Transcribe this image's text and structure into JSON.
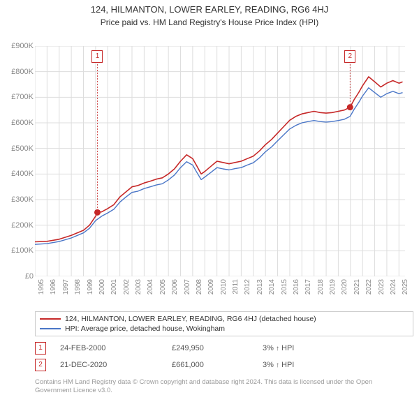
{
  "title_line1": "124, HILMANTON, LOWER EARLEY, READING, RG6 4HJ",
  "title_line2": "Price paid vs. HM Land Registry's House Price Index (HPI)",
  "chart": {
    "type": "line",
    "xlim": [
      1995,
      2025.5
    ],
    "ylim": [
      0,
      900000
    ],
    "ytick_step": 100000,
    "ytick_labels": [
      "£0",
      "£100K",
      "£200K",
      "£300K",
      "£400K",
      "£500K",
      "£600K",
      "£700K",
      "£800K",
      "£900K"
    ],
    "xtick_step": 1,
    "xtick_labels": [
      "1995",
      "1996",
      "1997",
      "1998",
      "1999",
      "2000",
      "2001",
      "2002",
      "2003",
      "2004",
      "2005",
      "2006",
      "2007",
      "2008",
      "2009",
      "2010",
      "2011",
      "2012",
      "2013",
      "2014",
      "2015",
      "2016",
      "2017",
      "2018",
      "2019",
      "2020",
      "2021",
      "2022",
      "2023",
      "2024",
      "2025"
    ],
    "background_color": "#ffffff",
    "grid_color": "#dddddd",
    "gridline_width": 1,
    "series": [
      {
        "name": "subject",
        "color": "#c62828",
        "width": 1.6,
        "points": [
          [
            1995,
            135000
          ],
          [
            1996,
            137000
          ],
          [
            1997,
            145000
          ],
          [
            1998,
            160000
          ],
          [
            1999,
            180000
          ],
          [
            1999.5,
            200000
          ],
          [
            2000,
            235000
          ],
          [
            2000.15,
            249950
          ],
          [
            2000.5,
            252000
          ],
          [
            2001,
            265000
          ],
          [
            2001.5,
            280000
          ],
          [
            2002,
            310000
          ],
          [
            2002.5,
            330000
          ],
          [
            2003,
            350000
          ],
          [
            2003.5,
            355000
          ],
          [
            2004,
            365000
          ],
          [
            2004.5,
            372000
          ],
          [
            2005,
            380000
          ],
          [
            2005.5,
            385000
          ],
          [
            2006,
            400000
          ],
          [
            2006.5,
            420000
          ],
          [
            2007,
            450000
          ],
          [
            2007.5,
            475000
          ],
          [
            2008,
            460000
          ],
          [
            2008.3,
            435000
          ],
          [
            2008.7,
            400000
          ],
          [
            2009,
            410000
          ],
          [
            2009.5,
            430000
          ],
          [
            2010,
            450000
          ],
          [
            2010.5,
            445000
          ],
          [
            2011,
            440000
          ],
          [
            2011.5,
            445000
          ],
          [
            2012,
            450000
          ],
          [
            2012.5,
            460000
          ],
          [
            2013,
            470000
          ],
          [
            2013.5,
            490000
          ],
          [
            2014,
            515000
          ],
          [
            2014.5,
            535000
          ],
          [
            2015,
            560000
          ],
          [
            2015.5,
            585000
          ],
          [
            2016,
            610000
          ],
          [
            2016.5,
            625000
          ],
          [
            2017,
            635000
          ],
          [
            2017.5,
            640000
          ],
          [
            2018,
            645000
          ],
          [
            2018.5,
            640000
          ],
          [
            2019,
            638000
          ],
          [
            2019.5,
            640000
          ],
          [
            2020,
            645000
          ],
          [
            2020.5,
            650000
          ],
          [
            2020.97,
            661000
          ],
          [
            2021.3,
            690000
          ],
          [
            2021.7,
            720000
          ],
          [
            2022,
            745000
          ],
          [
            2022.5,
            780000
          ],
          [
            2023,
            760000
          ],
          [
            2023.5,
            740000
          ],
          [
            2024,
            755000
          ],
          [
            2024.5,
            765000
          ],
          [
            2025,
            755000
          ],
          [
            2025.3,
            760000
          ]
        ]
      },
      {
        "name": "hpi",
        "color": "#4a76c7",
        "width": 1.4,
        "points": [
          [
            1995,
            125000
          ],
          [
            1996,
            128000
          ],
          [
            1997,
            136000
          ],
          [
            1998,
            150000
          ],
          [
            1999,
            170000
          ],
          [
            1999.5,
            188000
          ],
          [
            2000,
            218000
          ],
          [
            2000.5,
            235000
          ],
          [
            2001,
            248000
          ],
          [
            2001.5,
            262000
          ],
          [
            2002,
            290000
          ],
          [
            2002.5,
            310000
          ],
          [
            2003,
            328000
          ],
          [
            2003.5,
            333000
          ],
          [
            2004,
            343000
          ],
          [
            2004.5,
            350000
          ],
          [
            2005,
            357000
          ],
          [
            2005.5,
            362000
          ],
          [
            2006,
            377000
          ],
          [
            2006.5,
            396000
          ],
          [
            2007,
            425000
          ],
          [
            2007.5,
            448000
          ],
          [
            2008,
            435000
          ],
          [
            2008.3,
            410000
          ],
          [
            2008.7,
            378000
          ],
          [
            2009,
            388000
          ],
          [
            2009.5,
            406000
          ],
          [
            2010,
            425000
          ],
          [
            2010.5,
            420000
          ],
          [
            2011,
            416000
          ],
          [
            2011.5,
            421000
          ],
          [
            2012,
            425000
          ],
          [
            2012.5,
            435000
          ],
          [
            2013,
            444000
          ],
          [
            2013.5,
            463000
          ],
          [
            2014,
            487000
          ],
          [
            2014.5,
            506000
          ],
          [
            2015,
            530000
          ],
          [
            2015.5,
            553000
          ],
          [
            2016,
            576000
          ],
          [
            2016.5,
            590000
          ],
          [
            2017,
            600000
          ],
          [
            2017.5,
            605000
          ],
          [
            2018,
            609000
          ],
          [
            2018.5,
            605000
          ],
          [
            2019,
            603000
          ],
          [
            2019.5,
            605000
          ],
          [
            2020,
            609000
          ],
          [
            2020.5,
            614000
          ],
          [
            2020.97,
            625000
          ],
          [
            2021.3,
            652000
          ],
          [
            2021.7,
            681000
          ],
          [
            2022,
            705000
          ],
          [
            2022.5,
            737000
          ],
          [
            2023,
            718000
          ],
          [
            2023.5,
            700000
          ],
          [
            2024,
            714000
          ],
          [
            2024.5,
            723000
          ],
          [
            2025,
            714000
          ],
          [
            2025.3,
            718000
          ]
        ]
      }
    ],
    "sale_markers": [
      {
        "n": 1,
        "year": 2000.15,
        "price": 249950,
        "color": "#c62828"
      },
      {
        "n": 2,
        "year": 2020.97,
        "price": 661000,
        "color": "#c62828"
      }
    ]
  },
  "legend": {
    "items": [
      {
        "color": "#c62828",
        "label": "124, HILMANTON, LOWER EARLEY, READING, RG6 4HJ (detached house)"
      },
      {
        "color": "#4a76c7",
        "label": "HPI: Average price, detached house, Wokingham"
      }
    ]
  },
  "transactions": [
    {
      "n": "1",
      "color": "#c62828",
      "date": "24-FEB-2000",
      "price": "£249,950",
      "pct": "3%",
      "arrow": "↑",
      "suffix": "HPI"
    },
    {
      "n": "2",
      "color": "#c62828",
      "date": "21-DEC-2020",
      "price": "£661,000",
      "pct": "3%",
      "arrow": "↑",
      "suffix": "HPI"
    }
  ],
  "footnote": "Contains HM Land Registry data © Crown copyright and database right 2024. This data is licensed under the Open Government Licence v3.0."
}
